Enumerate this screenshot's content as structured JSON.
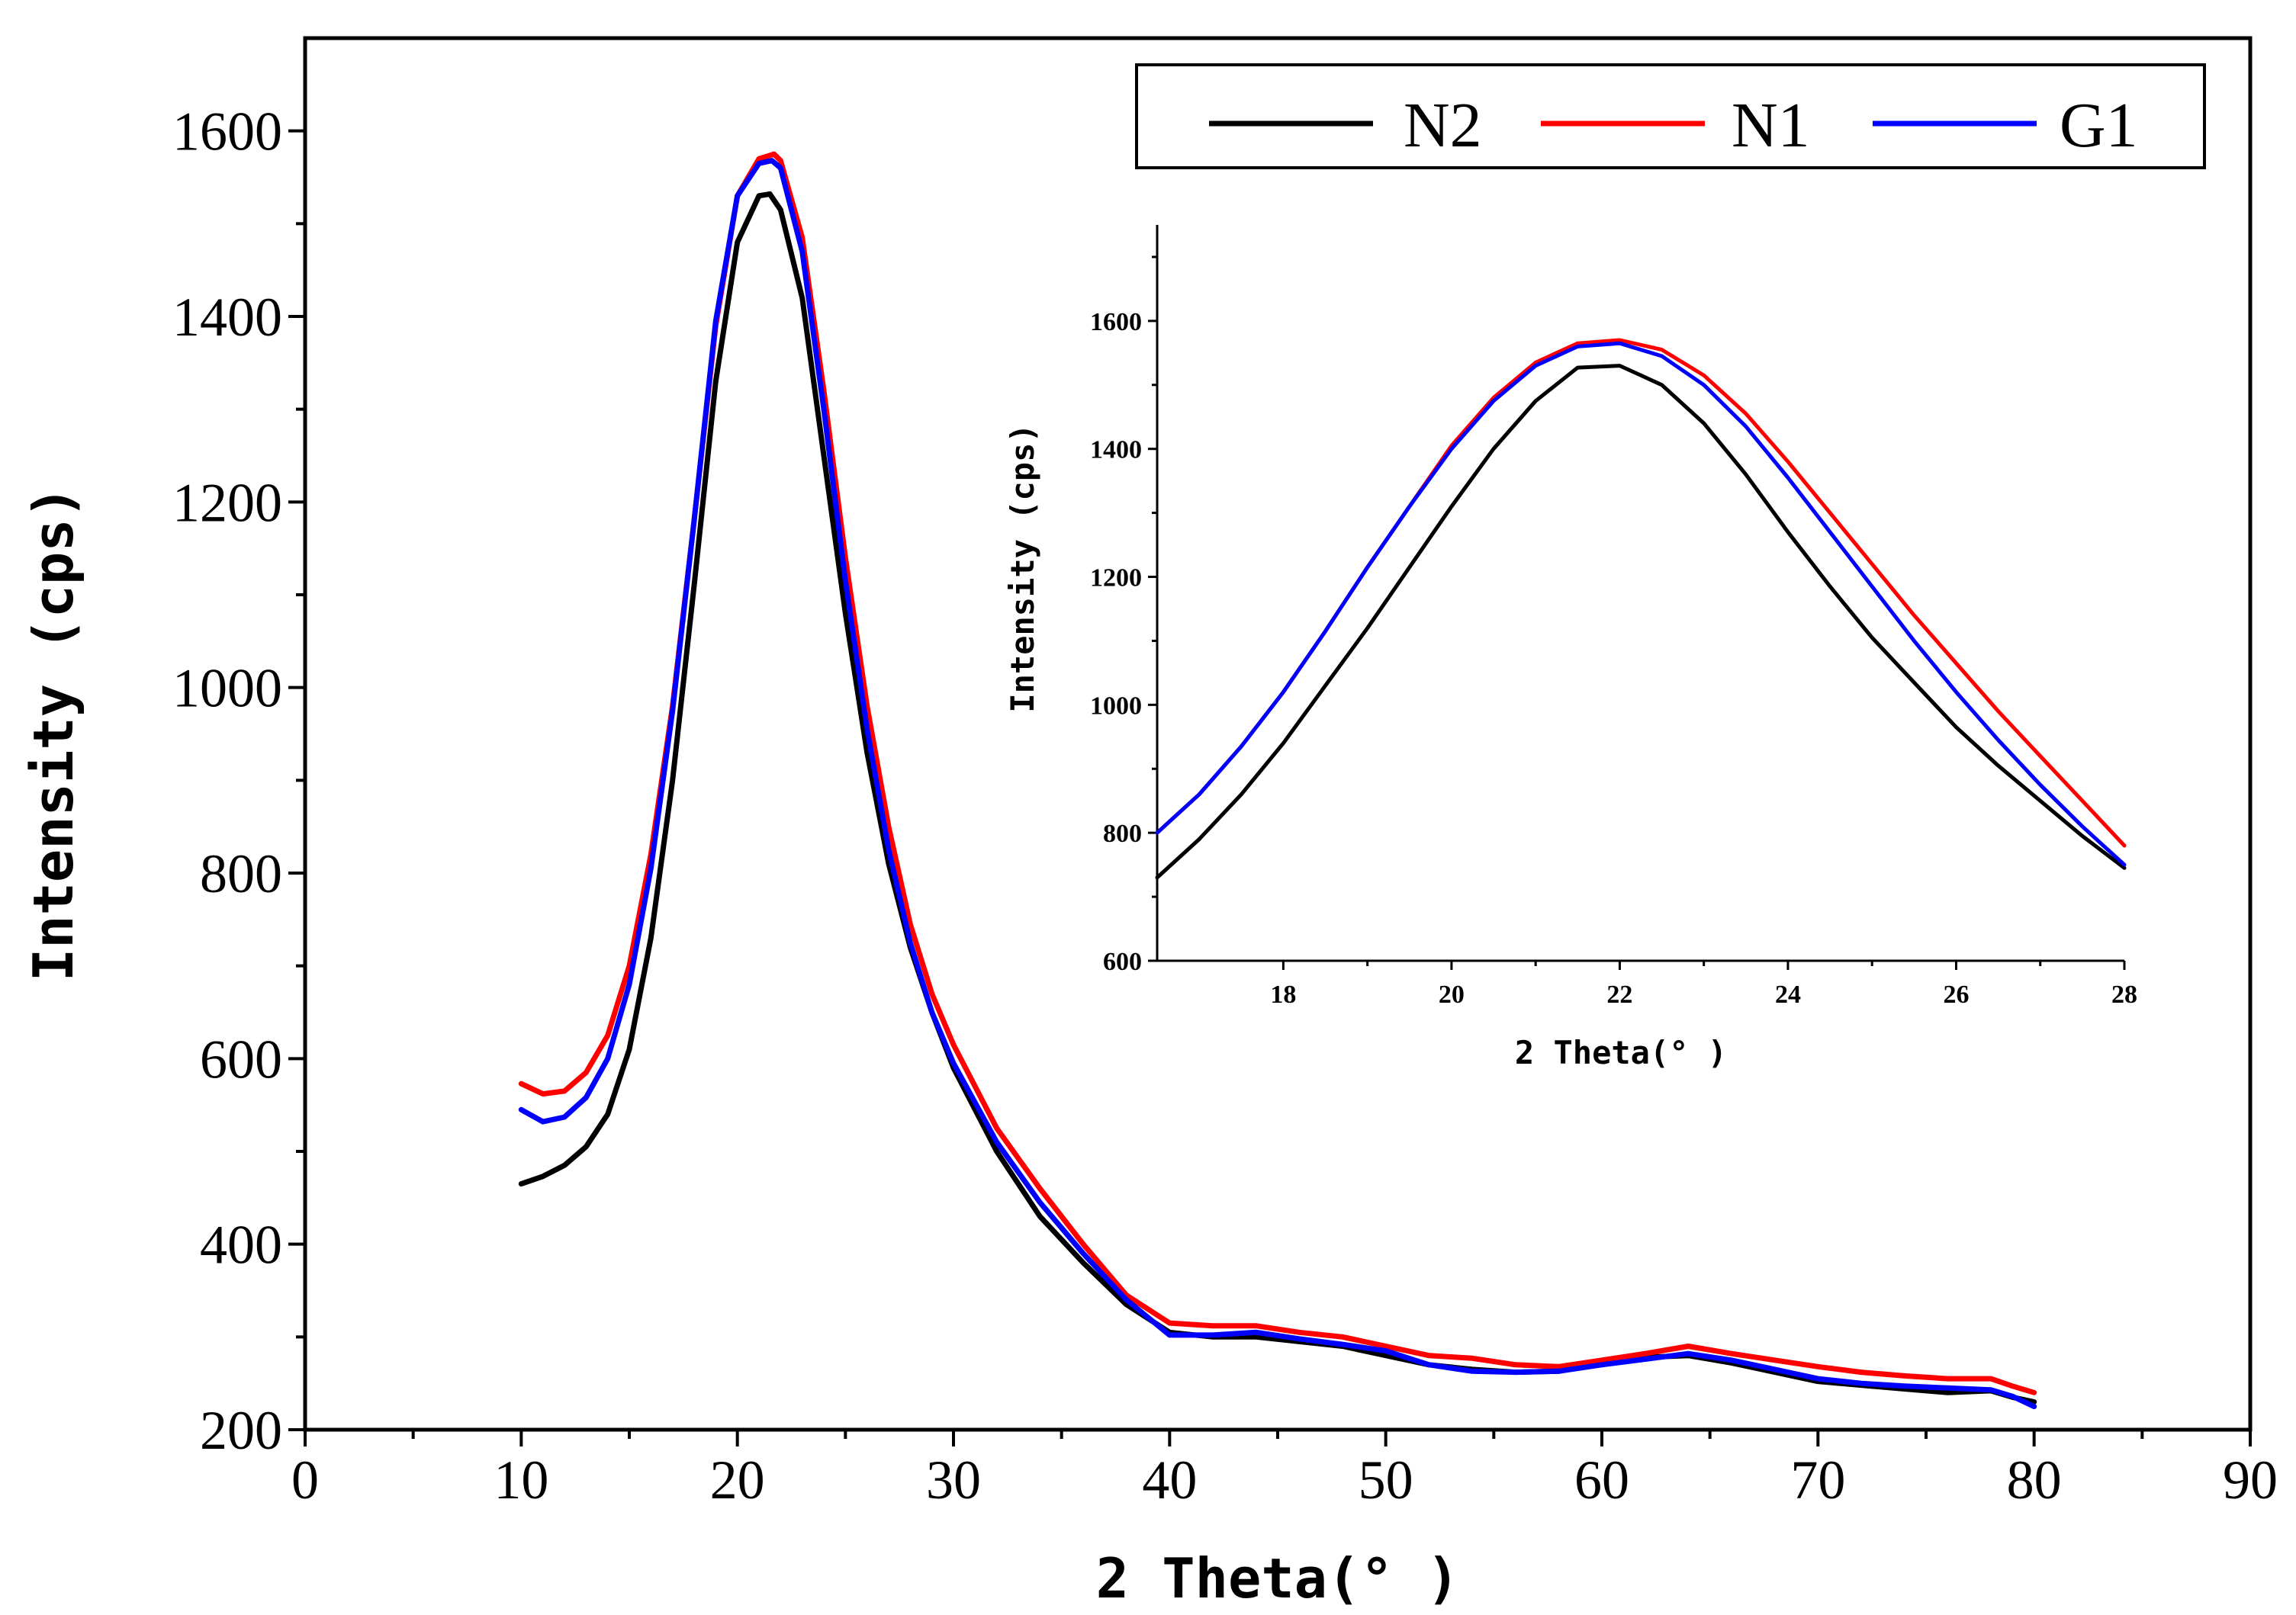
{
  "chart_data": [
    {
      "type": "line",
      "role": "main",
      "title": "",
      "xlabel": "2 Theta(° )",
      "ylabel": "Intensity (cps)",
      "xlim": [
        0,
        90
      ],
      "ylim": [
        200,
        1700
      ],
      "xticks": [
        0,
        10,
        20,
        30,
        40,
        50,
        60,
        70,
        80,
        90
      ],
      "yticks": [
        200,
        400,
        600,
        800,
        1000,
        1200,
        1400,
        1600
      ],
      "legend": {
        "placement": "top-right",
        "entries": [
          "N2",
          "N1",
          "G1"
        ]
      },
      "series": [
        {
          "name": "N2",
          "color": "#000000",
          "x": [
            10,
            11,
            12,
            13,
            14,
            15,
            16,
            17,
            18,
            19,
            20,
            21,
            21.5,
            22,
            23,
            24,
            25,
            26,
            27,
            28,
            29,
            30,
            32,
            34,
            36,
            38,
            40,
            42,
            44,
            46,
            48,
            50,
            52,
            54,
            56,
            58,
            60,
            62,
            64,
            66,
            68,
            70,
            72,
            74,
            76,
            78,
            79,
            80
          ],
          "y": [
            465,
            473,
            485,
            505,
            540,
            610,
            730,
            900,
            1110,
            1330,
            1480,
            1530,
            1532,
            1515,
            1420,
            1250,
            1080,
            930,
            810,
            720,
            650,
            590,
            500,
            430,
            380,
            335,
            305,
            300,
            300,
            295,
            290,
            280,
            270,
            265,
            262,
            263,
            272,
            278,
            280,
            272,
            262,
            252,
            248,
            244,
            240,
            242,
            235,
            230
          ]
        },
        {
          "name": "N1",
          "color": "#ff0000",
          "x": [
            10,
            11,
            12,
            13,
            14,
            15,
            16,
            17,
            18,
            19,
            20,
            21,
            21.7,
            22,
            23,
            24,
            25,
            26,
            27,
            28,
            29,
            30,
            32,
            34,
            36,
            38,
            40,
            42,
            44,
            46,
            48,
            50,
            52,
            54,
            56,
            58,
            60,
            62,
            64,
            66,
            68,
            70,
            72,
            74,
            76,
            78,
            79,
            80
          ],
          "y": [
            573,
            562,
            565,
            585,
            625,
            700,
            820,
            980,
            1180,
            1390,
            1530,
            1570,
            1575,
            1568,
            1485,
            1320,
            1140,
            980,
            850,
            745,
            670,
            615,
            525,
            460,
            400,
            345,
            315,
            312,
            312,
            305,
            300,
            290,
            280,
            277,
            270,
            268,
            275,
            282,
            290,
            282,
            275,
            268,
            262,
            258,
            255,
            255,
            247,
            240
          ]
        },
        {
          "name": "G1",
          "color": "#0000ff",
          "x": [
            10,
            11,
            12,
            13,
            14,
            15,
            16,
            17,
            18,
            19,
            20,
            21,
            21.6,
            22,
            23,
            24,
            25,
            26,
            27,
            28,
            29,
            30,
            32,
            34,
            36,
            38,
            40,
            42,
            44,
            46,
            48,
            50,
            52,
            54,
            56,
            58,
            60,
            62,
            64,
            66,
            68,
            70,
            72,
            74,
            76,
            78,
            79,
            80
          ],
          "y": [
            545,
            532,
            537,
            558,
            600,
            680,
            805,
            975,
            1180,
            1395,
            1530,
            1565,
            1568,
            1560,
            1470,
            1300,
            1115,
            955,
            825,
            725,
            650,
            595,
            510,
            445,
            390,
            340,
            302,
            302,
            305,
            298,
            292,
            285,
            270,
            263,
            262,
            263,
            270,
            276,
            282,
            275,
            265,
            255,
            250,
            247,
            245,
            243,
            236,
            225
          ]
        }
      ]
    },
    {
      "type": "line",
      "role": "inset",
      "title": "",
      "xlabel": "2 Theta(° )",
      "ylabel": "Intensity (cps)",
      "xlim": [
        16.5,
        28
      ],
      "ylim": [
        600,
        1750
      ],
      "xticks": [
        18,
        20,
        22,
        24,
        26,
        28
      ],
      "yticks": [
        600,
        800,
        1000,
        1200,
        1400,
        1600
      ],
      "series": [
        {
          "name": "N2",
          "color": "#000000",
          "x": [
            16.5,
            17,
            17.5,
            18,
            18.5,
            19,
            19.5,
            20,
            20.5,
            21,
            21.5,
            22,
            22.5,
            23,
            23.5,
            24,
            24.5,
            25,
            25.5,
            26,
            26.5,
            27,
            27.5,
            28
          ],
          "y": [
            730,
            790,
            860,
            940,
            1030,
            1120,
            1215,
            1310,
            1400,
            1475,
            1527,
            1530,
            1500,
            1440,
            1360,
            1270,
            1185,
            1105,
            1035,
            965,
            905,
            850,
            795,
            745
          ]
        },
        {
          "name": "N1",
          "color": "#ff0000",
          "x": [
            16.5,
            17,
            17.5,
            18,
            18.5,
            19,
            19.5,
            20,
            20.5,
            21,
            21.5,
            22,
            22.5,
            23,
            23.5,
            24,
            24.5,
            25,
            25.5,
            26,
            26.5,
            27,
            27.5,
            28
          ],
          "y": [
            800,
            860,
            935,
            1020,
            1115,
            1215,
            1310,
            1405,
            1480,
            1535,
            1565,
            1570,
            1555,
            1515,
            1455,
            1380,
            1300,
            1220,
            1140,
            1065,
            990,
            920,
            850,
            780
          ]
        },
        {
          "name": "G1",
          "color": "#0000ff",
          "x": [
            16.5,
            17,
            17.5,
            18,
            18.5,
            19,
            19.5,
            20,
            20.5,
            21,
            21.5,
            22,
            22.5,
            23,
            23.5,
            24,
            24.5,
            25,
            25.5,
            26,
            26.5,
            27,
            27.5,
            28
          ],
          "y": [
            800,
            860,
            935,
            1020,
            1115,
            1215,
            1310,
            1400,
            1475,
            1530,
            1560,
            1565,
            1545,
            1500,
            1435,
            1355,
            1270,
            1185,
            1100,
            1020,
            945,
            875,
            810,
            750
          ]
        }
      ]
    }
  ]
}
